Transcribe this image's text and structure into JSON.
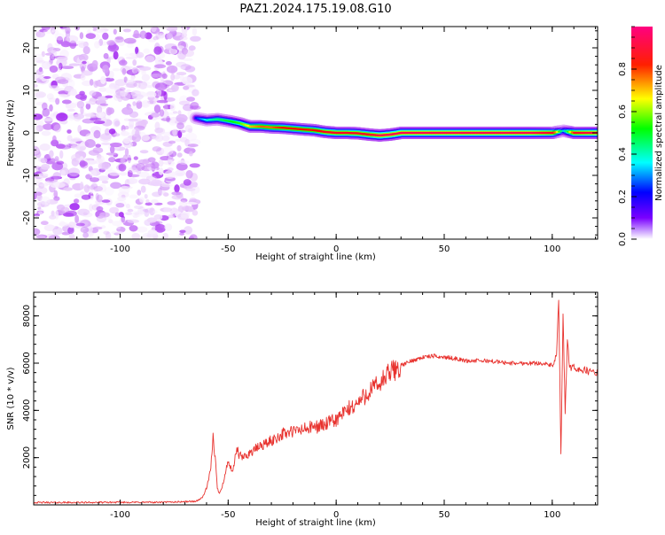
{
  "figure_title": "PAZ1.2024.175.19.08.G10",
  "chart_data": [
    {
      "type": "heatmap",
      "xlabel": "Height of straight line (km)",
      "ylabel": "Frequency (Hz)",
      "xlim": [
        -140,
        121
      ],
      "ylim": [
        -25,
        25
      ],
      "x_ticks": [
        -100,
        -50,
        0,
        50,
        100
      ],
      "y_ticks": [
        -20,
        -10,
        0,
        10,
        20
      ],
      "colorbar": {
        "label": "Normalized spectral amplitude",
        "range": [
          0,
          1
        ],
        "ticks": [
          0.0,
          0.2,
          0.4,
          0.6,
          0.8
        ],
        "colormap": [
          "#ffffff",
          "#a020f0",
          "#0000ff",
          "#00ffff",
          "#00ff00",
          "#ffff00",
          "#ff0000",
          "#ff0080"
        ]
      },
      "ridge": {
        "x": [
          -65,
          -60,
          -55,
          -50,
          -45,
          -40,
          -35,
          -30,
          -25,
          -20,
          -15,
          -10,
          -5,
          0,
          5,
          10,
          15,
          20,
          25,
          30,
          40,
          50,
          60,
          70,
          80,
          90,
          100,
          105,
          110,
          121
        ],
        "freq": [
          3.5,
          3.0,
          3.2,
          2.8,
          2.3,
          1.5,
          1.5,
          1.3,
          1.2,
          1.0,
          0.8,
          0.6,
          0.2,
          0.0,
          0.0,
          -0.1,
          -0.4,
          -0.6,
          -0.4,
          0.0,
          0.0,
          0.0,
          0.0,
          0.0,
          0.0,
          0.0,
          0.0,
          0.5,
          0.0,
          0.0
        ],
        "amplitude": [
          0.3,
          0.45,
          0.5,
          0.55,
          0.6,
          0.75,
          0.8,
          0.8,
          0.85,
          0.85,
          0.85,
          0.85,
          0.9,
          0.9,
          0.9,
          0.9,
          0.9,
          0.95,
          0.95,
          0.95,
          0.95,
          0.95,
          0.95,
          0.95,
          0.95,
          0.95,
          0.9,
          0.4,
          0.9,
          0.95
        ]
      },
      "noise_region_x": [
        -140,
        -65
      ]
    },
    {
      "type": "line",
      "xlabel": "Height of straight line (km)",
      "ylabel": "SNR (10 * v/v)",
      "xlim": [
        -140,
        121
      ],
      "ylim": [
        0,
        9000
      ],
      "x_ticks": [
        -100,
        -50,
        0,
        50,
        100
      ],
      "y_ticks": [
        2000,
        4000,
        6000,
        8000
      ],
      "color": "#e8322e",
      "x": [
        -140,
        -120,
        -100,
        -80,
        -65,
        -62,
        -60,
        -58,
        -57,
        -56,
        -55,
        -54,
        -52,
        -50,
        -48,
        -46,
        -45,
        -43,
        -40,
        -35,
        -30,
        -25,
        -20,
        -15,
        -10,
        -5,
        0,
        5,
        10,
        15,
        20,
        25,
        30,
        35,
        40,
        45,
        50,
        55,
        60,
        70,
        80,
        90,
        95,
        100,
        102,
        103,
        104,
        105,
        106,
        107,
        108,
        110,
        115,
        120,
        121
      ],
      "y": [
        100,
        100,
        110,
        110,
        150,
        300,
        700,
        1500,
        2900,
        2000,
        700,
        500,
        1000,
        1900,
        1300,
        2400,
        2100,
        2000,
        2200,
        2500,
        2700,
        3000,
        3100,
        3200,
        3300,
        3400,
        3600,
        4000,
        4300,
        4800,
        5100,
        5600,
        5900,
        6100,
        6250,
        6300,
        6250,
        6200,
        6100,
        6100,
        6000,
        6000,
        6000,
        5900,
        6300,
        8700,
        2000,
        8000,
        4000,
        7000,
        5800,
        5800,
        5700,
        5600,
        5600
      ]
    }
  ]
}
